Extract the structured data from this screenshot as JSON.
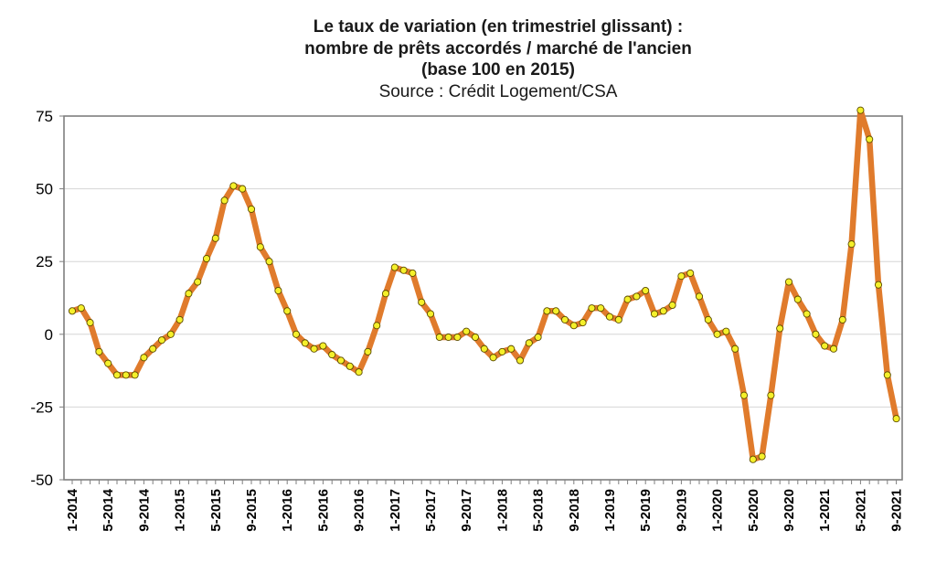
{
  "chart_data": {
    "type": "line",
    "title_lines": [
      "Le taux de variation (en trimestriel glissant) :",
      "nombre de prêts accordés / marché de l'ancien",
      "(base 100 en 2015)"
    ],
    "subtitle": "Source : Crédit Logement/CSA",
    "ylim": [
      -50,
      75
    ],
    "yticks": [
      75,
      50,
      25,
      0,
      -25,
      -50
    ],
    "grid": true,
    "line_color": "#e07b2c",
    "marker_color": "#f5f02a",
    "x_tick_labels": [
      "1-2014",
      "5-2014",
      "9-2014",
      "1-2015",
      "5-2015",
      "9-2015",
      "1-2016",
      "5-2016",
      "9-2016",
      "1-2017",
      "5-2017",
      "9-2017",
      "1-2018",
      "5-2018",
      "9-2018",
      "1-2019",
      "5-2019",
      "9-2019",
      "1-2020",
      "5-2020",
      "9-2020",
      "1-2021",
      "5-2021",
      "9-2021"
    ],
    "x": [
      "1-2014",
      "2-2014",
      "3-2014",
      "4-2014",
      "5-2014",
      "6-2014",
      "7-2014",
      "8-2014",
      "9-2014",
      "10-2014",
      "11-2014",
      "12-2014",
      "1-2015",
      "2-2015",
      "3-2015",
      "4-2015",
      "5-2015",
      "6-2015",
      "7-2015",
      "8-2015",
      "9-2015",
      "10-2015",
      "11-2015",
      "12-2015",
      "1-2016",
      "2-2016",
      "3-2016",
      "4-2016",
      "5-2016",
      "6-2016",
      "7-2016",
      "8-2016",
      "9-2016",
      "10-2016",
      "11-2016",
      "12-2016",
      "1-2017",
      "2-2017",
      "3-2017",
      "4-2017",
      "5-2017",
      "6-2017",
      "7-2017",
      "8-2017",
      "9-2017",
      "10-2017",
      "11-2017",
      "12-2017",
      "1-2018",
      "2-2018",
      "3-2018",
      "4-2018",
      "5-2018",
      "6-2018",
      "7-2018",
      "8-2018",
      "9-2018",
      "10-2018",
      "11-2018",
      "12-2018",
      "1-2019",
      "2-2019",
      "3-2019",
      "4-2019",
      "5-2019",
      "6-2019",
      "7-2019",
      "8-2019",
      "9-2019",
      "10-2019",
      "11-2019",
      "12-2019",
      "1-2020",
      "2-2020",
      "3-2020",
      "4-2020",
      "5-2020",
      "6-2020",
      "7-2020",
      "8-2020",
      "9-2020",
      "10-2020",
      "11-2020",
      "12-2020",
      "1-2021",
      "2-2021",
      "3-2021",
      "4-2021",
      "5-2021",
      "6-2021",
      "7-2021",
      "8-2021",
      "9-2021"
    ],
    "values": [
      8,
      9,
      4,
      -6,
      -10,
      -14,
      -14,
      -14,
      -8,
      -5,
      -2,
      0,
      5,
      14,
      18,
      26,
      33,
      46,
      51,
      50,
      43,
      30,
      25,
      15,
      8,
      0,
      -3,
      -5,
      -4,
      -7,
      -9,
      -11,
      -13,
      -6,
      3,
      14,
      23,
      22,
      21,
      11,
      7,
      -1,
      -1,
      -1,
      1,
      -1,
      -5,
      -8,
      -6,
      -5,
      -9,
      -3,
      -1,
      8,
      8,
      5,
      3,
      4,
      9,
      9,
      6,
      5,
      12,
      13,
      15,
      7,
      8,
      10,
      20,
      21,
      13,
      5,
      0,
      1,
      -5,
      -21,
      -43,
      -42,
      -21,
      2,
      18,
      12,
      7,
      0,
      -4,
      -5,
      5,
      31,
      77,
      67,
      17,
      -14,
      -29
    ]
  }
}
